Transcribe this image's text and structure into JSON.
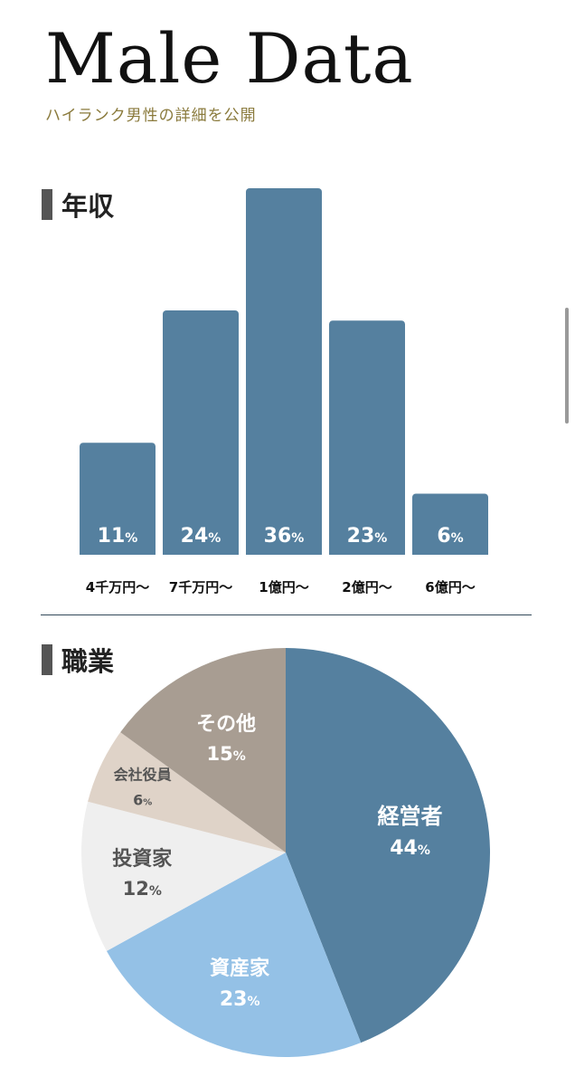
{
  "header": {
    "title": "Male Data",
    "subtitle": "ハイランク男性の詳細を公開"
  },
  "sections": {
    "income": "年収",
    "occupation": "職業"
  },
  "colors": {
    "bar": "#55809f",
    "divider": "#33495a",
    "pie": [
      "#55809f",
      "#94c1e6",
      "#efefef",
      "#dfd3c8",
      "#a89d92"
    ]
  },
  "chart_data": [
    {
      "type": "bar",
      "categories": [
        "4千万円〜",
        "7千万円〜",
        "1億円〜",
        "2億円〜",
        "6億円〜"
      ],
      "values": [
        11,
        24,
        36,
        23,
        6
      ],
      "unit": "%",
      "title": "年収"
    },
    {
      "type": "pie",
      "labels": [
        "経営者",
        "資産家",
        "投資家",
        "会社役員",
        "その他"
      ],
      "values": [
        44,
        23,
        12,
        6,
        15
      ],
      "unit": "%",
      "title": "職業"
    }
  ]
}
